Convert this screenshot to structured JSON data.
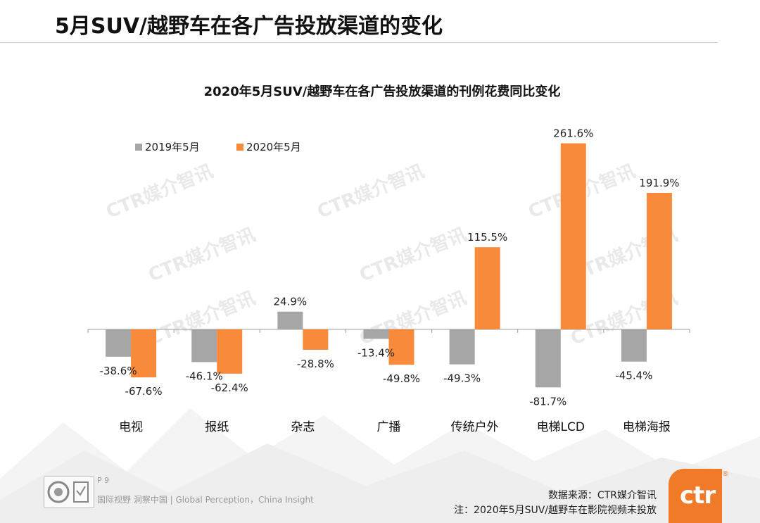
{
  "page": {
    "title": "5月SUV/越野车在各广告投放渠道的变化",
    "page_number": "P 9",
    "tagline": "国际视野  洞察中国 |  Global Perception，China Insight",
    "source": "数据来源：CTR媒介智讯",
    "note": "注：2020年5月SUV/越野车在影院视频未投放",
    "brand": "ctr",
    "brand_mark": "®",
    "watermark": "CTR媒介智讯"
  },
  "chart_data": {
    "type": "bar",
    "title": "2020年5月SUV/越野车在各广告投放渠道的刊例花费同比变化",
    "categories": [
      "电视",
      "报纸",
      "杂志",
      "广播",
      "传统户外",
      "电梯LCD",
      "电梯海报"
    ],
    "series": [
      {
        "name": "2019年5月",
        "color": "#a6a6a6",
        "values": [
          -38.6,
          -46.1,
          24.9,
          -13.4,
          -49.3,
          -81.7,
          -45.4
        ]
      },
      {
        "name": "2020年5月",
        "color": "#f78a3b",
        "values": [
          -67.6,
          -62.4,
          -28.8,
          -49.8,
          115.5,
          261.6,
          191.9
        ]
      }
    ],
    "value_suffix": "%",
    "legend": "top-left",
    "ylim": [
      -115,
      281
    ],
    "xlabel": "",
    "ylabel": ""
  }
}
